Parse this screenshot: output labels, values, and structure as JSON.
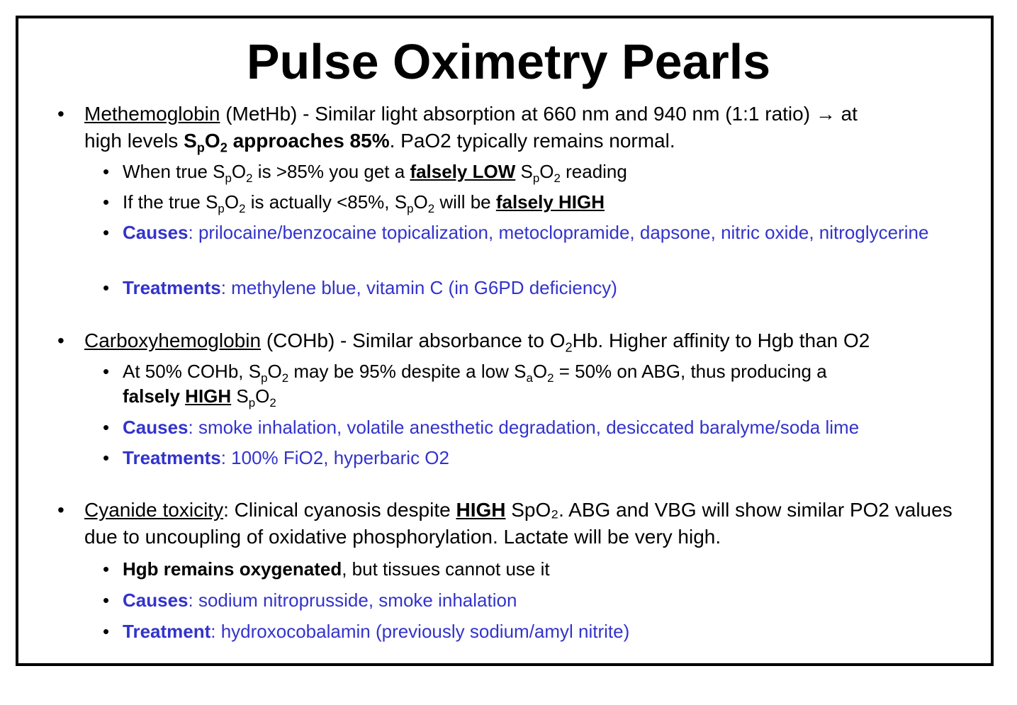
{
  "title": "Pulse Oximetry Pearls",
  "spo2": {
    "s": "S",
    "p": "p",
    "o": "O",
    "two": "2"
  },
  "sao2": {
    "s": "S",
    "a": "a",
    "o": "O",
    "two": "2"
  },
  "o2hb": {
    "o": "O",
    "two": "2",
    "hb": "Hb. Higher affinity to Hgb than O2"
  },
  "methb": {
    "term": "Methemoglobin",
    "line1_rest": " (MetHb) - Similar light absorption at 660 nm and 940 nm (1:1 ratio) → at",
    "line2_pre": "high levels ",
    "line2_bold_tail": " approaches 85%",
    "line2_rest": ". PaO2 typically remains normal.",
    "sub1_pre": "When true ",
    "sub1_mid": " is >85% you get a ",
    "sub1_emph": "falsely LOW",
    "sub1_post": " reading",
    "sub2_pre": "If the true ",
    "sub2_mid": " is actually <85%, ",
    "sub2_mid2": " will be ",
    "sub2_emph": "falsely HIGH",
    "causes_label": "Causes",
    "causes_text": ": prilocaine/benzocaine topicalization, metoclopramide, dapsone, nitric oxide, nitroglycerine",
    "treatments_label": "Treatments",
    "treatments_text": ": methylene blue, vitamin C (in G6PD deficiency)"
  },
  "cohb": {
    "term": "Carboxyhemoglobin",
    "line1_rest": " (COHb) - Similar absorbance to ",
    "sub1_pre": "At 50% COHb, ",
    "sub1_mid": " may be 95% despite a low ",
    "sub1_mid2": " = 50% on ABG, thus producing a",
    "sub1_bold": "falsely ",
    "sub1_emph": "HIGH",
    "causes_label": "Causes",
    "causes_text": ": smoke inhalation, volatile anesthetic degradation, desiccated baralyme/soda lime",
    "treatments_label": "Treatments",
    "treatments_text": ": 100% FiO2, hyperbaric O2"
  },
  "cyanide": {
    "term": "Cyanide toxicity",
    "line1_pre": ": Clinical cyanosis despite ",
    "line1_emph": "HIGH",
    "line1_post": " SpO₂. ABG and VBG will show similar PO2 values due to uncoupling of oxidative phosphorylation. Lactate will be very high.",
    "sub1_bold": "Hgb remains oxygenated",
    "sub1_rest": ", but tissues cannot use it",
    "causes_label": "Causes",
    "causes_text": ": sodium nitroprusside, smoke inhalation",
    "treatment_label": "Treatment",
    "treatment_text": ": hydroxocobalamin (previously sodium/amyl nitrite)"
  },
  "colors": {
    "accent": "#3333cc",
    "border": "#000000",
    "text": "#000000"
  }
}
